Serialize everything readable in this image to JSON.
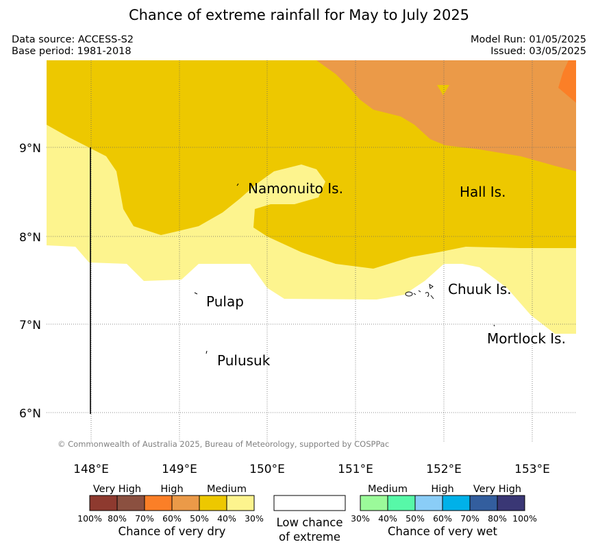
{
  "header": {
    "title": "Chance of extreme rainfall for May to July 2025",
    "data_source": "Data source: ACCESS-S2",
    "base_period": "Base period: 1981-2018",
    "model_run": "Model Run: 01/05/2025",
    "issued": "Issued: 03/05/2025"
  },
  "map": {
    "copyright": "© Commonwealth of Australia 2025, Bureau of Meteorology, supported by COSPPac",
    "lat_labels": [
      "9°N",
      "8°N",
      "7°N",
      "6°N"
    ],
    "lon_labels": [
      "148°E",
      "149°E",
      "150°E",
      "151°E",
      "152°E",
      "153°E"
    ],
    "places": [
      {
        "name": "Namonuito Is."
      },
      {
        "name": "Hall Is."
      },
      {
        "name": "Pulap"
      },
      {
        "name": "Chuuk Is."
      },
      {
        "name": "Pulusuk"
      },
      {
        "name": "Mortlock Is."
      }
    ],
    "colors": {
      "light_yellow": "#fdf48e",
      "gold": "#edc800",
      "orange": "#eb9a48",
      "dark_orange": "#fb7f27"
    }
  },
  "legend": {
    "dry": {
      "categories": [
        "Very High",
        "High",
        "Medium"
      ],
      "colors": [
        "#8e3a2f",
        "#8b5040",
        "#fb7f27",
        "#eb9a48",
        "#edc800",
        "#fdf48e"
      ],
      "ticks": [
        "100%",
        "80%",
        "70%",
        "60%",
        "50%",
        "40%",
        "30%"
      ],
      "label": "Chance of very dry"
    },
    "neutral": {
      "color": "#ffffff",
      "label_line1": "Low chance",
      "label_line2": "of extreme"
    },
    "wet": {
      "categories": [
        "Medium",
        "High",
        "Very High"
      ],
      "colors": [
        "#9bfa9a",
        "#57f8a8",
        "#8acdf7",
        "#00b1e9",
        "#335e9e",
        "#3a3775"
      ],
      "ticks": [
        "30%",
        "40%",
        "50%",
        "60%",
        "70%",
        "80%",
        "100%"
      ],
      "label": "Chance of very wet"
    }
  }
}
